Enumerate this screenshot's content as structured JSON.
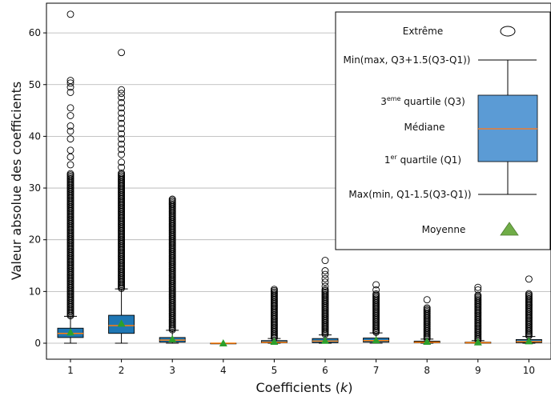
{
  "chart_data": {
    "type": "box",
    "xlabel": "Coefficients (",
    "xlabel_var": "k",
    "xlabel_end": ")",
    "ylabel": "Valeur absolue des coefficients",
    "ylim": [
      -3,
      65
    ],
    "yticks": [
      0,
      10,
      20,
      30,
      40,
      50,
      60
    ],
    "grid": "horizontal",
    "legend_position": "top-right",
    "colors": {
      "box": "#1f77b4",
      "median": "#ff7f0e",
      "mean": "#2ca02c",
      "legend_box": "#5b9bd5",
      "legend_mean": "#70ad47"
    },
    "categories": [
      "1",
      "2",
      "3",
      "4",
      "5",
      "6",
      "7",
      "8",
      "9",
      "10"
    ],
    "boxes": [
      {
        "k": "1",
        "q1": 1.1,
        "median": 1.9,
        "q3": 2.9,
        "whisker_low": 0,
        "whisker_high": 5.2,
        "mean": 2.1,
        "outlier_min": 5.3,
        "outlier_max": 33.0,
        "sparse_outliers": [
          34.5,
          36,
          37.3,
          39.5,
          41,
          42,
          44,
          45.5,
          48.5,
          49.5,
          50.3,
          50.8,
          63.6
        ]
      },
      {
        "k": "2",
        "q1": 1.9,
        "median": 3.4,
        "q3": 5.4,
        "whisker_low": 0,
        "whisker_high": 10.5,
        "mean": 3.8,
        "outlier_min": 10.6,
        "outlier_max": 33.0,
        "sparse_outliers": [
          34,
          35,
          36.5,
          37.5,
          38.5,
          39.5,
          40.5,
          41.5,
          42.5,
          43.5,
          44.5,
          45.5,
          46.5,
          47.5,
          48.3,
          49,
          56.2
        ]
      },
      {
        "k": "3",
        "q1": 0.2,
        "median": 0.6,
        "q3": 1.1,
        "whisker_low": 0,
        "whisker_high": 2.5,
        "mean": 0.8,
        "outlier_min": 2.6,
        "outlier_max": 27.9,
        "sparse_outliers": []
      },
      {
        "k": "4",
        "q1": 0,
        "median": 0,
        "q3": 0,
        "whisker_low": 0,
        "whisker_high": 0,
        "mean": 0,
        "outlier_min": null,
        "outlier_max": null,
        "sparse_outliers": []
      },
      {
        "k": "5",
        "q1": 0.1,
        "median": 0.2,
        "q3": 0.5,
        "whisker_low": 0,
        "whisker_high": 0.9,
        "mean": 0.3,
        "outlier_min": 1.0,
        "outlier_max": 10.5,
        "sparse_outliers": []
      },
      {
        "k": "6",
        "q1": 0.1,
        "median": 0.4,
        "q3": 0.9,
        "whisker_low": 0,
        "whisker_high": 1.6,
        "mean": 0.5,
        "outlier_min": 1.7,
        "outlier_max": 10.5,
        "sparse_outliers": [
          11,
          11.8,
          12.5,
          13.3,
          14,
          16
        ]
      },
      {
        "k": "7",
        "q1": 0.2,
        "median": 0.5,
        "q3": 1.0,
        "whisker_low": 0,
        "whisker_high": 2.0,
        "mean": 0.6,
        "outlier_min": 2.1,
        "outlier_max": 9.7,
        "sparse_outliers": [
          10.3,
          11.3
        ]
      },
      {
        "k": "8",
        "q1": 0.1,
        "median": 0.2,
        "q3": 0.4,
        "whisker_low": 0,
        "whisker_high": 0.8,
        "mean": 0.3,
        "outlier_min": 0.9,
        "outlier_max": 7.0,
        "sparse_outliers": [
          8.4
        ]
      },
      {
        "k": "9",
        "q1": 0,
        "median": 0.1,
        "q3": 0.2,
        "whisker_low": 0,
        "whisker_high": 0.5,
        "mean": 0.2,
        "outlier_min": 0.6,
        "outlier_max": 9.5,
        "sparse_outliers": [
          10.3,
          10.8
        ]
      },
      {
        "k": "10",
        "q1": 0.1,
        "median": 0.3,
        "q3": 0.7,
        "whisker_low": 0,
        "whisker_high": 1.3,
        "mean": 0.4,
        "outlier_min": 1.4,
        "outlier_max": 9.8,
        "sparse_outliers": [
          12.4
        ]
      }
    ],
    "legend": {
      "extreme": "Extrême",
      "upper_whisker": "Min(max, Q3+1.5(Q3-Q1))",
      "q3_prefix": "3",
      "q3_sup": "eme",
      "q3_suffix": " quartile (Q3)",
      "median": "Médiane",
      "q1_prefix": "1",
      "q1_sup": "er",
      "q1_suffix": " quartile (Q1)",
      "lower_whisker": "Max(min, Q1-1.5(Q3-Q1))",
      "mean": "Moyenne"
    }
  }
}
